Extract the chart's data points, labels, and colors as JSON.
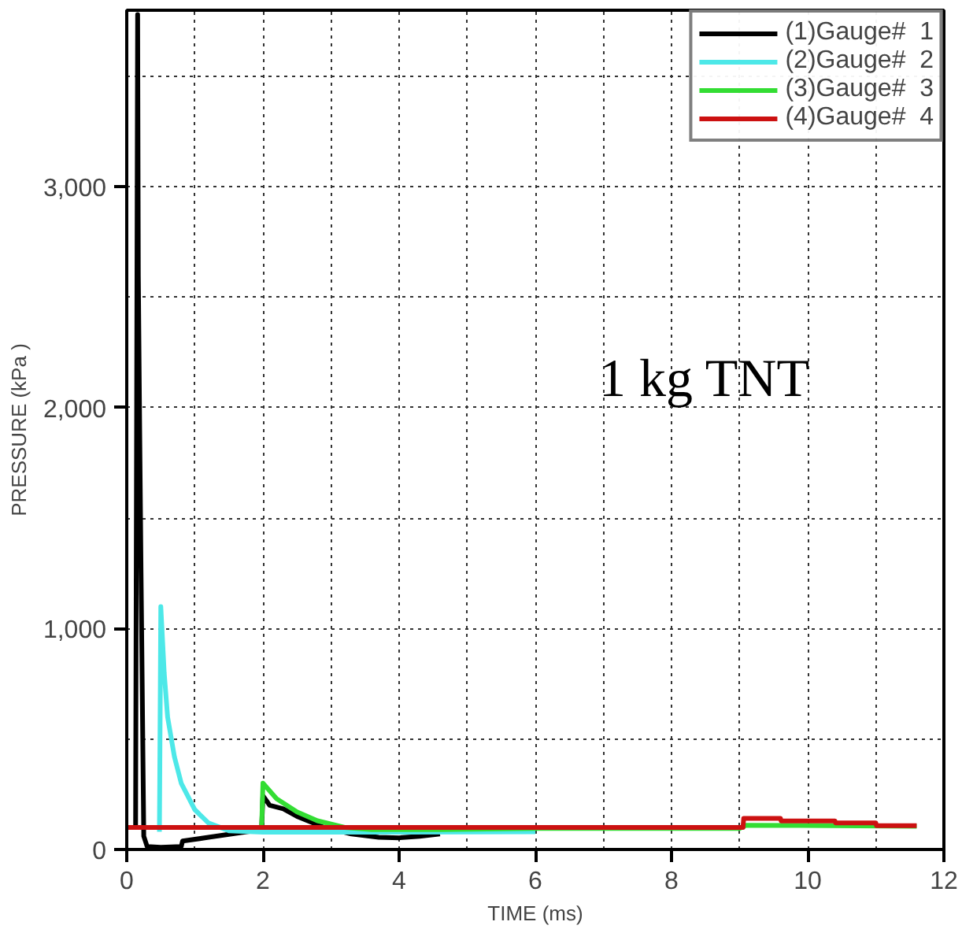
{
  "chart_data": {
    "type": "line",
    "xlabel": "TIME (ms)",
    "ylabel": "PRESSURE (kPa )",
    "annotations": [
      "1 kg TNT"
    ],
    "xlim": [
      0,
      12
    ],
    "ylim": [
      0,
      3800
    ],
    "xticks": [
      0,
      {
        "value": 1,
        "label": null
      },
      2,
      {
        "value": 3,
        "label": null
      },
      4,
      {
        "value": 5,
        "label": null
      },
      6,
      {
        "value": 7,
        "label": null
      },
      8,
      {
        "value": 9,
        "label": null
      },
      10,
      {
        "value": 11,
        "label": null
      },
      12
    ],
    "yticks": [
      {
        "value": 0,
        "label": "0"
      },
      {
        "value": 500,
        "label": null
      },
      {
        "value": 1000,
        "label": "1,000"
      },
      {
        "value": 1500,
        "label": null
      },
      {
        "value": 2000,
        "label": "2,000"
      },
      {
        "value": 2500,
        "label": null
      },
      {
        "value": 3000,
        "label": "3,000"
      },
      {
        "value": 3500,
        "label": null
      }
    ],
    "grid": true,
    "legend": "top right",
    "line_style": "solid",
    "marker": "none",
    "series": [
      {
        "name": "(1)Gauge#  1",
        "color": "#000000",
        "x": [
          0.1,
          0.13,
          0.16,
          0.17,
          0.19,
          0.21,
          0.25,
          0.3,
          0.5,
          0.8,
          0.82,
          1.2,
          1.76,
          1.98,
          2.0,
          2.1,
          2.3,
          2.5,
          2.9,
          3.3,
          3.7,
          4.0,
          4.3,
          4.6
        ],
        "values": [
          100,
          100,
          3780,
          2600,
          1900,
          1250,
          60,
          13,
          10,
          13,
          38,
          55,
          80,
          90,
          243,
          200,
          184,
          150,
          100,
          70,
          55,
          53,
          60,
          70
        ]
      },
      {
        "name": "(2)Gauge#  2",
        "color": "#4de8e8",
        "x": [
          0.48,
          0.5,
          0.55,
          0.6,
          0.7,
          0.8,
          1.0,
          1.2,
          1.5,
          2.0,
          2.8,
          6.0
        ],
        "values": [
          80,
          1100,
          800,
          600,
          420,
          300,
          180,
          120,
          85,
          78,
          78,
          80
        ]
      },
      {
        "name": "(3)Gauge#  3",
        "color": "#33dd33",
        "x": [
          1.98,
          2.0,
          2.2,
          2.5,
          2.8,
          3.2,
          3.6,
          4.6,
          6.0,
          9.0,
          9.1,
          11.6
        ],
        "values": [
          90,
          300,
          230,
          170,
          130,
          100,
          90,
          90,
          95,
          95,
          110,
          105
        ]
      },
      {
        "name": "(4)Gauge#  4",
        "color": "#cc1111",
        "x": [
          0,
          9.05,
          9.06,
          9.6,
          9.61,
          10.4,
          10.41,
          11.0,
          11.01,
          11.6
        ],
        "values": [
          100,
          100,
          141,
          141,
          129,
          129,
          120,
          120,
          108,
          108
        ]
      }
    ]
  }
}
